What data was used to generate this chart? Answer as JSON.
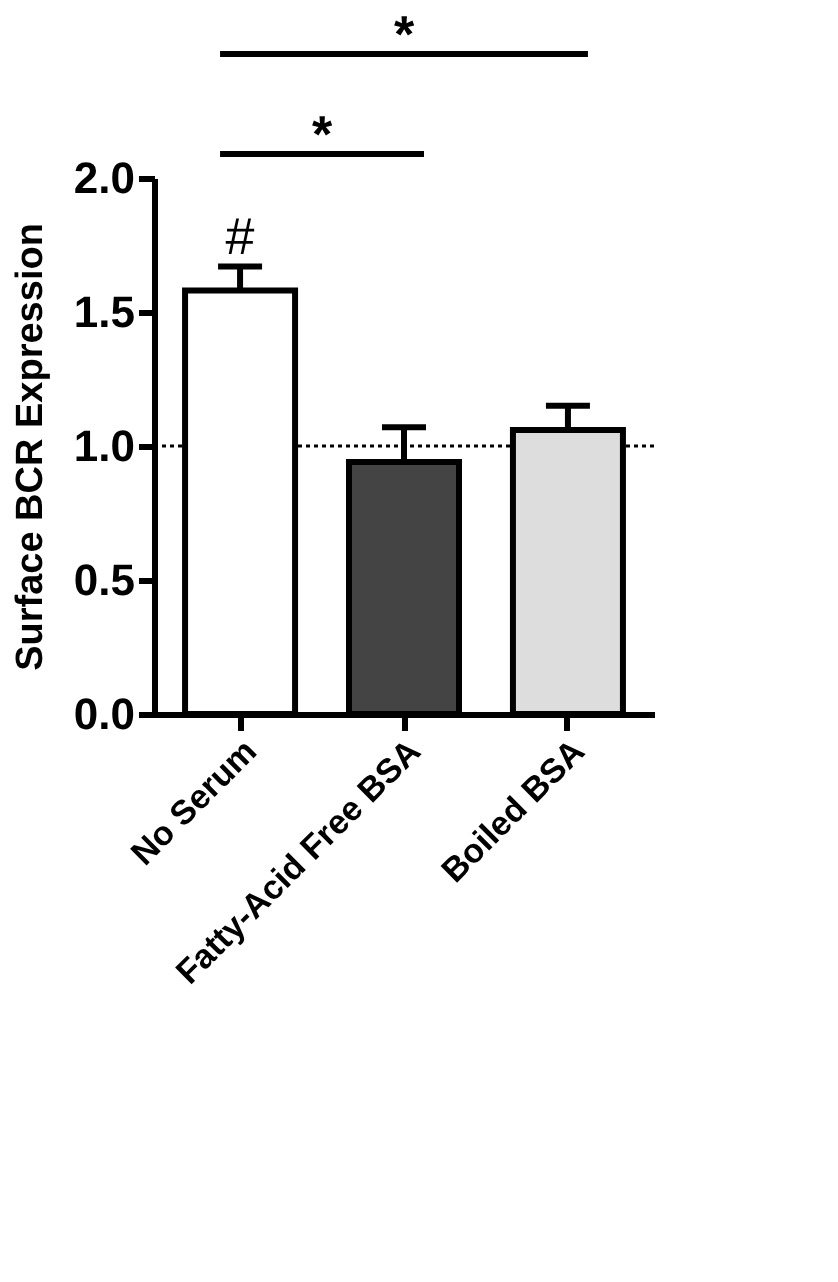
{
  "chart_data": {
    "type": "bar",
    "ylabel": "Surface BCR Expression",
    "categories": [
      "No Serum",
      "Fatty-Acid Free BSA",
      "Boiled BSA"
    ],
    "values": [
      1.58,
      0.94,
      1.06
    ],
    "errors": [
      [
        1.58,
        1.67
      ],
      [
        0.94,
        1.07
      ],
      [
        1.06,
        1.15
      ]
    ],
    "colors": [
      "#ffffff",
      "#444444",
      "#dddddd"
    ],
    "ylim": [
      0,
      2
    ],
    "yticks": [
      {
        "value": 0,
        "label": "0.0"
      },
      0.5,
      {
        "value": 1,
        "label": "1.0"
      },
      1.5,
      {
        "value": 2,
        "label": "2.0"
      }
    ],
    "grid": false,
    "ref_lines": [
      {
        "axis": "y",
        "value": 1,
        "label": null,
        "line_style": "dotted",
        "color": "#000000"
      }
    ],
    "annotations": [
      "*",
      "*",
      "#"
    ]
  }
}
